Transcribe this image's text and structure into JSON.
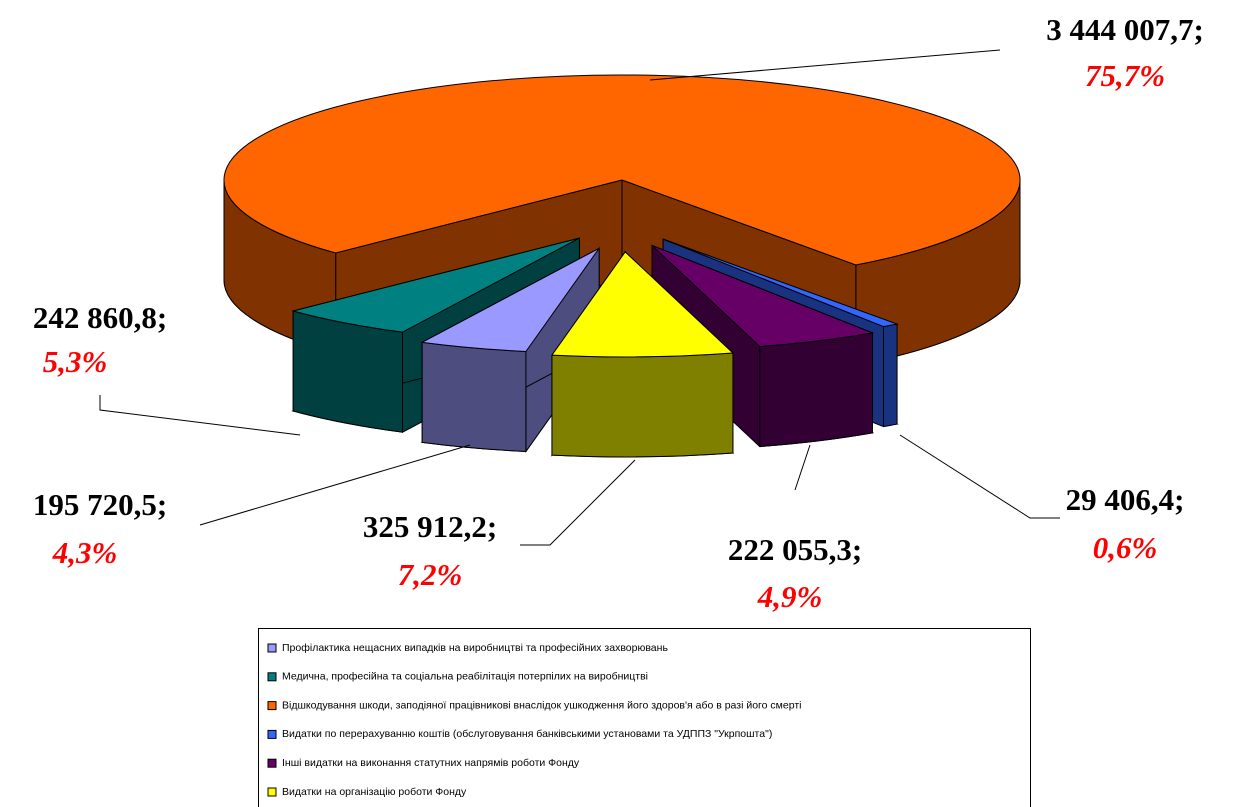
{
  "chart_data": {
    "type": "pie3d",
    "categories": [
      "Профілактика нещасних випадків на виробництві та професійних захворювань",
      "Медична, професійна та соціальна реабілітація потерпілих на виробництві",
      "Відшкодування шкоди, заподіяної працівникові внаслідок ушкодження його здоров'я або в разі його смерті",
      "Видатки по перерахуванню коштів (обслуговування банківськими установами та УДППЗ \"Укрпошта\")",
      "Інші видатки на виконання статутних напрямів роботи Фонду",
      "Видатки на організацію роботи Фонду"
    ],
    "values": [
      195720.5,
      242860.8,
      3444007.7,
      29406.4,
      222055.3,
      325912.2
    ],
    "value_labels": [
      "195 720,5;",
      "242 860,8;",
      "3 444 007,7;",
      "29 406,4;",
      "222 055,3;",
      "325 912,2;"
    ],
    "shares": [
      4.3,
      5.3,
      75.7,
      0.6,
      4.9,
      7.2
    ],
    "share_labels": [
      "4,3%",
      "5,3%",
      "75,7%",
      "0,6%",
      "4,9%",
      "7,2%"
    ],
    "colors": [
      "#9999ff",
      "#008080",
      "#ff6600",
      "#3366ff",
      "#660066",
      "#ffff00"
    ],
    "legend": "bottom"
  }
}
